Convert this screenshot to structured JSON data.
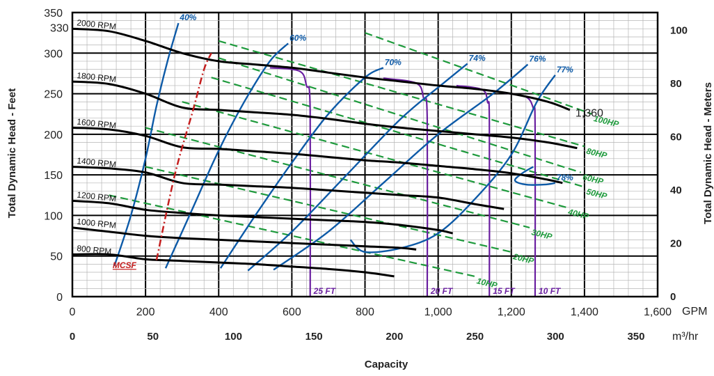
{
  "chart_data": {
    "type": "line",
    "title": "",
    "xlabel": "Capacity",
    "ylabel": "Total Dynamic Head - Feet",
    "y2label": "Total Dynamic Head - Meters",
    "x_unit": "GPM",
    "x2_unit": "m³/hr",
    "xlim": [
      0,
      1600
    ],
    "ylim": [
      0,
      350
    ],
    "x_ticks": [
      "0",
      "200",
      "400",
      "600",
      "800",
      "1,000",
      "1,200",
      "1,400",
      "1,600"
    ],
    "x2_ticks": [
      "0",
      "50",
      "100",
      "150",
      "200",
      "250",
      "300",
      "350"
    ],
    "y_ticks": [
      "0",
      "50",
      "100",
      "150",
      "200",
      "250",
      "300",
      "350"
    ],
    "y2_ticks": [
      "0",
      "20",
      "40",
      "60",
      "80",
      "100"
    ],
    "grid": true,
    "annotations": [
      "330",
      "1,360",
      "MCSF"
    ],
    "speed_curves": [
      {
        "name": "2000 RPM",
        "x": [
          0,
          100,
          200,
          300,
          400,
          500,
          600,
          700,
          800,
          900,
          1000,
          1100,
          1200,
          1300,
          1360
        ],
        "y": [
          330,
          327,
          315,
          300,
          290,
          286,
          282,
          276,
          270,
          265,
          260,
          256,
          250,
          240,
          230
        ]
      },
      {
        "name": "1800 RPM",
        "x": [
          0,
          100,
          200,
          300,
          400,
          500,
          600,
          700,
          800,
          900,
          1000,
          1100,
          1200,
          1300,
          1380
        ],
        "y": [
          265,
          262,
          250,
          233,
          230,
          227,
          224,
          219,
          213,
          208,
          204,
          200,
          196,
          190,
          183
        ]
      },
      {
        "name": "1600 RPM",
        "x": [
          0,
          100,
          200,
          300,
          400,
          500,
          600,
          700,
          800,
          900,
          1000,
          1100,
          1200,
          1300,
          1340
        ],
        "y": [
          208,
          206,
          198,
          184,
          182,
          179,
          176,
          172,
          168,
          165,
          161,
          157,
          152,
          144,
          140
        ]
      },
      {
        "name": "1400 RPM",
        "x": [
          0,
          100,
          200,
          300,
          400,
          500,
          600,
          700,
          800,
          900,
          1000,
          1100,
          1180
        ],
        "y": [
          160,
          158,
          153,
          140,
          138,
          136,
          134,
          131,
          128,
          125,
          122,
          114,
          108
        ]
      },
      {
        "name": "1200 RPM",
        "x": [
          0,
          100,
          200,
          300,
          400,
          500,
          600,
          700,
          800,
          900,
          1000,
          1040
        ],
        "y": [
          118,
          115,
          107,
          103,
          100,
          98,
          96,
          94,
          92,
          88,
          82,
          78
        ]
      },
      {
        "name": "1000 RPM",
        "x": [
          0,
          100,
          200,
          300,
          400,
          500,
          600,
          700,
          800,
          900,
          940
        ],
        "y": [
          85,
          80,
          75,
          72,
          70,
          68,
          66,
          64,
          62,
          60,
          58
        ]
      },
      {
        "name": "800 RPM",
        "x": [
          0,
          100,
          200,
          300,
          400,
          500,
          600,
          700,
          800,
          880
        ],
        "y": [
          52,
          52,
          46,
          44,
          42,
          40,
          37,
          34,
          30,
          25
        ]
      }
    ],
    "efficiency_curves": [
      {
        "name": "40%",
        "x": [
          115,
          160,
          200,
          230,
          260,
          290
        ],
        "y": [
          38,
          100,
          170,
          235,
          290,
          337
        ]
      },
      {
        "name": "60%",
        "x": [
          255,
          330,
          400,
          470,
          540,
          590
        ],
        "y": [
          35,
          110,
          180,
          240,
          290,
          312
        ]
      },
      {
        "name": "70%",
        "x": [
          405,
          500,
          600,
          700,
          800,
          850
        ],
        "y": [
          35,
          100,
          165,
          225,
          270,
          282
        ]
      },
      {
        "name": "74%",
        "x": [
          480,
          600,
          750,
          900,
          1020,
          1080
        ],
        "y": [
          32,
          80,
          150,
          220,
          265,
          287
        ]
      },
      {
        "name": "76%",
        "x": [
          550,
          700,
          850,
          1000,
          1150,
          1245
        ],
        "y": [
          33,
          80,
          140,
          200,
          250,
          286
        ]
      },
      {
        "name": "77%",
        "x": [
          760,
          800,
          900,
          1000,
          1100,
          1200,
          1270,
          1320
        ],
        "y": [
          70,
          55,
          60,
          78,
          120,
          175,
          240,
          273
        ]
      },
      {
        "name": "78%",
        "x": [
          1260,
          1230,
          1210,
          1240,
          1290,
          1320
        ],
        "y": [
          160,
          152,
          143,
          138,
          138,
          140
        ]
      }
    ],
    "power_lines": [
      {
        "name": "10HP",
        "x": [
          100,
          1100
        ],
        "y": [
          125,
          25
        ]
      },
      {
        "name": "20HP",
        "x": [
          200,
          1200
        ],
        "y": [
          160,
          55
        ]
      },
      {
        "name": "30HP",
        "x": [
          200,
          1250
        ],
        "y": [
          208,
          85
        ]
      },
      {
        "name": "40HP",
        "x": [
          300,
          1350
        ],
        "y": [
          240,
          110
        ]
      },
      {
        "name": "50HP",
        "x": [
          380,
          1400
        ],
        "y": [
          270,
          135
        ]
      },
      {
        "name": "60HP",
        "x": [
          400,
          1390
        ],
        "y": [
          294,
          153
        ]
      },
      {
        "name": "80HP",
        "x": [
          400,
          1400
        ],
        "y": [
          315,
          185
        ]
      },
      {
        "name": "100HP",
        "x": [
          800,
          1420
        ],
        "y": [
          325,
          225
        ]
      }
    ],
    "npsh_curves": [
      {
        "name": "25 FT",
        "x": [
          540,
          620,
          640,
          650,
          650
        ],
        "y": [
          282,
          278,
          260,
          230,
          0
        ]
      },
      {
        "name": "20 FT",
        "x": [
          850,
          940,
          960,
          970,
          970
        ],
        "y": [
          269,
          263,
          245,
          220,
          0
        ]
      },
      {
        "name": "15 FT",
        "x": [
          1050,
          1120,
          1135,
          1140,
          1140
        ],
        "y": [
          260,
          255,
          240,
          215,
          0
        ]
      },
      {
        "name": "10 FT",
        "x": [
          1180,
          1240,
          1260,
          1265,
          1265
        ],
        "y": [
          251,
          246,
          232,
          210,
          0
        ]
      }
    ],
    "mcsf_curve": {
      "name": "MCSF",
      "x": [
        230,
        280,
        330,
        360,
        380
      ],
      "y": [
        45,
        150,
        230,
        280,
        300
      ]
    },
    "colors": {
      "speed": "#000000",
      "efficiency": "#0d5aa7",
      "power": "#1e9a3c",
      "npsh": "#6a1fa0",
      "mcsf": "#c41e1e",
      "grid": "#b5b5b5",
      "major_grid": "#000000"
    }
  }
}
